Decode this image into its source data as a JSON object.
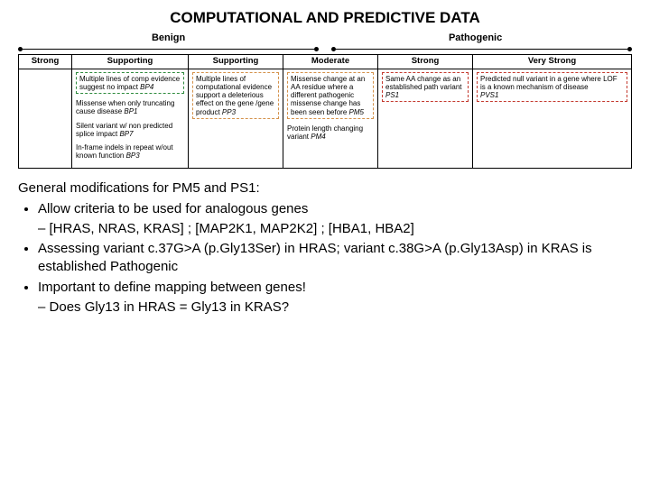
{
  "title": "COMPUTATIONAL AND PREDICTIVE DATA",
  "headers": {
    "benign": "Benign",
    "pathogenic": "Pathogenic"
  },
  "columns": {
    "strong_b": "Strong",
    "supp_b": "Supporting",
    "supp_p": "Supporting",
    "moderate": "Moderate",
    "strong_p": "Strong",
    "vstrong": "Very Strong"
  },
  "criteria": {
    "bp4": {
      "text": "Multiple lines of comp evidence suggest no impact ",
      "code": "BP4"
    },
    "bp1": {
      "text": "Missense when only truncating cause disease ",
      "code": "BP1"
    },
    "bp7": {
      "text": "Silent variant w/ non predicted splice impact ",
      "code": "BP7"
    },
    "bp3": {
      "text": "In-frame indels in repeat w/out known function ",
      "code": "BP3"
    },
    "pp3": {
      "text": "Multiple lines of computational evidence support a deleterious effect on the gene /gene product ",
      "code": "PP3"
    },
    "pm5": {
      "text": "Missense change at an AA residue where a different pathogenic missense change has been seen before ",
      "code": "PM5"
    },
    "pm4": {
      "text": "Protein length changing variant ",
      "code": "PM4"
    },
    "ps1": {
      "text": "Same AA change as an established path variant",
      "code": "PS1"
    },
    "pvs1": {
      "text": "Predicted null variant in a gene where LOF is a known mechanism of disease",
      "code": "PVS1"
    }
  },
  "bullets": {
    "intro": "General modifications for PM5 and PS1:",
    "b1": "Allow criteria to be used for analogous genes",
    "b1_sub": "[HRAS, NRAS, KRAS] ; [MAP2K1, MAP2K2] ; [HBA1, HBA2]",
    "b2": "Assessing variant c.37G>A (p.Gly13Ser) in HRAS; variant c.38G>A (p.Gly13Asp) in KRAS is established Pathogenic",
    "b3": "Important to define mapping between genes!",
    "b3_sub": "Does Gly13 in HRAS = Gly13 in KRAS?"
  },
  "colors": {
    "green": "#2e8b3d",
    "orange": "#d4914a",
    "red": "#c43a2f",
    "background": "#ffffff",
    "text": "#000000"
  }
}
